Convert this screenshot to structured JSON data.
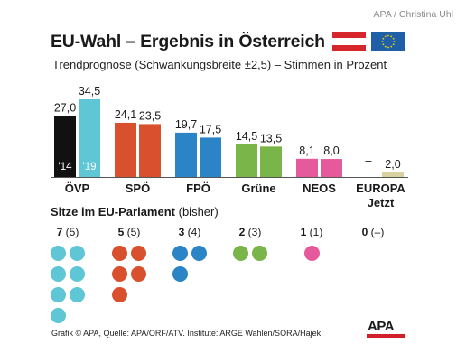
{
  "credit": "APA / Christina Uhl",
  "title": "EU-Wahl – Ergebnis in Österreich",
  "subtitle": "Trendprognose (Schwankungsbreite ±2,5) – Stimmen in Prozent",
  "colors": {
    "austria_red": "#d7262b",
    "eu_blue": "#1f5fa8",
    "eu_star": "#f5d200"
  },
  "chart_data": {
    "type": "bar",
    "title": "EU-Wahl – Ergebnis in Österreich",
    "subtitle": "Trendprognose (Schwankungsbreite ±2,5) – Stimmen in Prozent",
    "categories": [
      "ÖVP",
      "SPÖ",
      "FPÖ",
      "Grüne",
      "NEOS",
      "EUROPA Jetzt"
    ],
    "series": [
      {
        "name": "'14",
        "values": [
          27.0,
          24.1,
          19.7,
          14.5,
          8.1,
          null
        ]
      },
      {
        "name": "'19",
        "values": [
          34.5,
          23.5,
          17.5,
          13.5,
          8.0,
          2.0
        ]
      }
    ],
    "value_labels": [
      [
        "27,0",
        "34,5"
      ],
      [
        "24,1",
        "23,5"
      ],
      [
        "19,7",
        "17,5"
      ],
      [
        "14,5",
        "13,5"
      ],
      [
        "8,1",
        "8,0"
      ],
      [
        "–",
        "2,0"
      ]
    ],
    "colors_2014": [
      "#111111",
      "#d9502f",
      "#2a84c6",
      "#79b548",
      "#e45a9a",
      "#d9d2a0"
    ],
    "colors_2019": [
      "#5ec6d4",
      "#d9502f",
      "#2a84c6",
      "#79b548",
      "#e45a9a",
      "#d9d2a0"
    ],
    "year_labels_in_bars": [
      "'14",
      "'19"
    ],
    "ylim": [
      0,
      36
    ]
  },
  "seats": {
    "title": "Sitze im EU-Parlament",
    "title_suffix": "(bisher)",
    "parties": [
      {
        "party": "ÖVP",
        "seats": "7",
        "previous": "(5)",
        "count": 7,
        "color": "#5ec6d4"
      },
      {
        "party": "SPÖ",
        "seats": "5",
        "previous": "(5)",
        "count": 5,
        "color": "#d9502f"
      },
      {
        "party": "FPÖ",
        "seats": "3",
        "previous": "(4)",
        "count": 3,
        "color": "#2a84c6"
      },
      {
        "party": "Grüne",
        "seats": "2",
        "previous": "(3)",
        "count": 2,
        "color": "#79b548"
      },
      {
        "party": "NEOS",
        "seats": "1",
        "previous": "(1)",
        "count": 1,
        "color": "#e45a9a"
      },
      {
        "party": "EUROPA Jetzt",
        "seats": "0",
        "previous": "(–)",
        "count": 0,
        "color": "#d9d2a0"
      }
    ]
  },
  "footer": "Grafik © APA, Quelle: APA/ORF/ATV. Institute: ARGE Wahlen/SORA/Hajek",
  "logo_text": "APA"
}
